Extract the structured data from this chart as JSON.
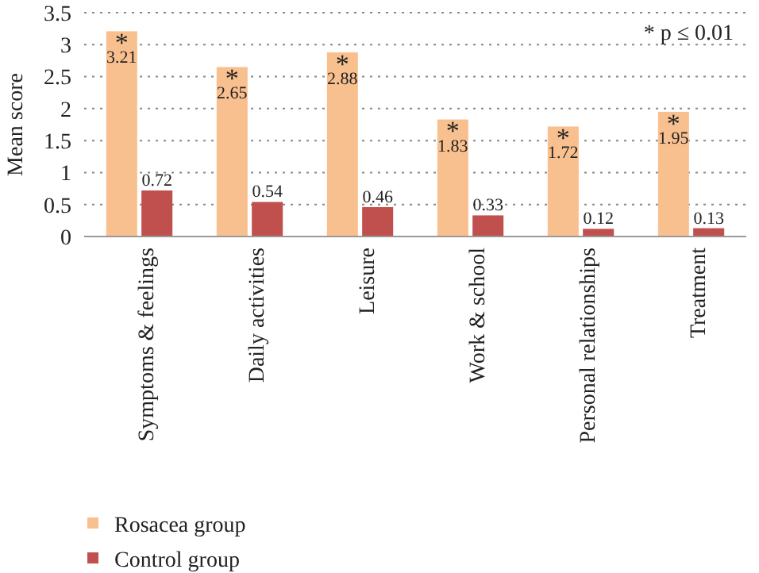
{
  "chart_data": {
    "type": "bar",
    "ylabel": "Mean score",
    "categories": [
      "Symptoms & feelings",
      "Daily activities",
      "Leisure",
      "Work & school",
      "Personal relationships",
      "Treatment"
    ],
    "series": [
      {
        "name": "Rosacea group",
        "color": "#f9c08f",
        "values": [
          3.21,
          2.65,
          2.88,
          1.83,
          1.72,
          1.95
        ]
      },
      {
        "name": "Control group",
        "color": "#c0504d",
        "values": [
          0.72,
          0.54,
          0.46,
          0.33,
          0.12,
          0.13
        ]
      }
    ],
    "ylim": [
      0,
      3.5
    ],
    "yticks": [
      0,
      0.5,
      1,
      1.5,
      2,
      2.5,
      3,
      3.5
    ],
    "grid": "y",
    "legend": "bottom left",
    "data_labels": true,
    "annotations": [
      "*",
      "*",
      "*",
      "*",
      "*",
      "*",
      "* p ≤ 0.01"
    ]
  }
}
